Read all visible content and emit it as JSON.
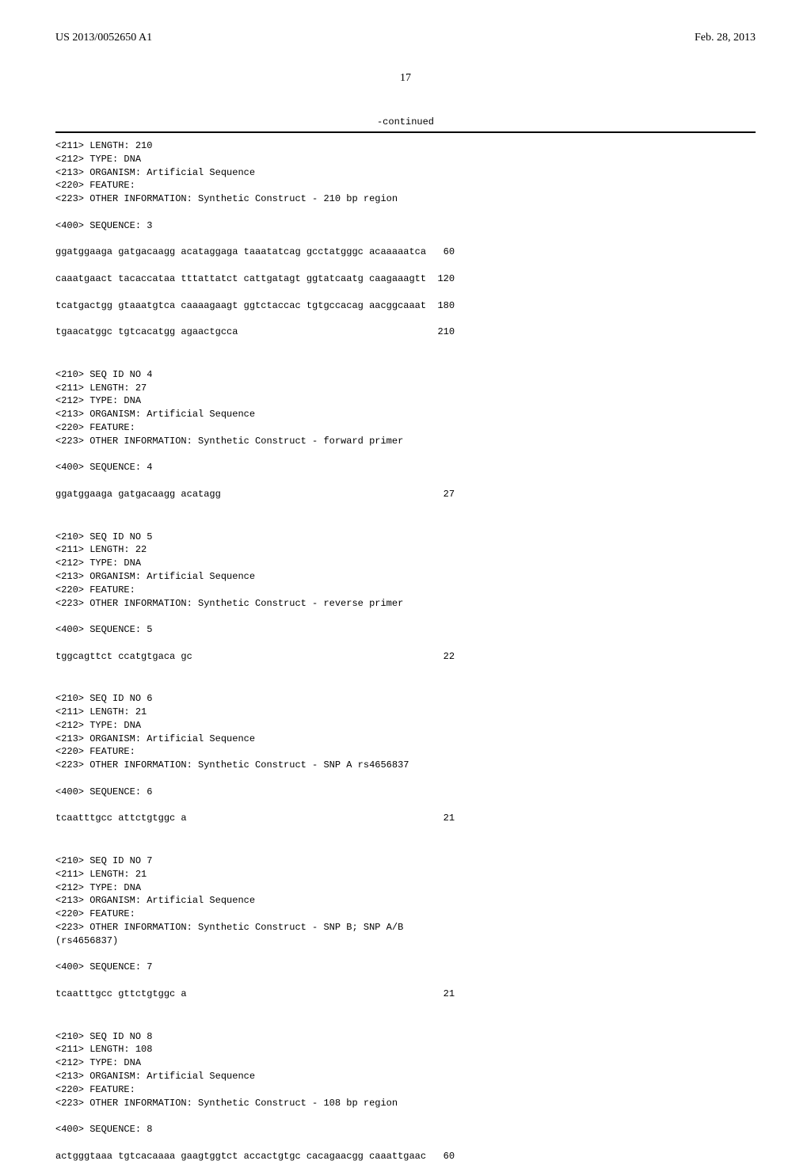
{
  "header": {
    "left": "US 2013/0052650 A1",
    "right": "Feb. 28, 2013"
  },
  "page_number": "17",
  "continued_label": "-continued",
  "sequences": [
    {
      "meta": [
        "<211> LENGTH: 210",
        "<212> TYPE: DNA",
        "<213> ORGANISM: Artificial Sequence",
        "<220> FEATURE:",
        "<223> OTHER INFORMATION: Synthetic Construct - 210 bp region"
      ],
      "seq_label": "<400> SEQUENCE: 3",
      "lines": [
        {
          "text": "ggatggaaga gatgacaagg acataggaga taaatatcag gcctatgggc acaaaaatca",
          "pos": "60"
        },
        {
          "text": "caaatgaact tacaccataa tttattatct cattgatagt ggtatcaatg caagaaagtt",
          "pos": "120"
        },
        {
          "text": "tcatgactgg gtaaatgtca caaaagaagt ggtctaccac tgtgccacag aacggcaaat",
          "pos": "180"
        },
        {
          "text": "tgaacatggc tgtcacatgg agaactgcca",
          "pos": "210"
        }
      ]
    },
    {
      "meta": [
        "<210> SEQ ID NO 4",
        "<211> LENGTH: 27",
        "<212> TYPE: DNA",
        "<213> ORGANISM: Artificial Sequence",
        "<220> FEATURE:",
        "<223> OTHER INFORMATION: Synthetic Construct - forward primer"
      ],
      "seq_label": "<400> SEQUENCE: 4",
      "lines": [
        {
          "text": "ggatggaaga gatgacaagg acatagg",
          "pos": "27"
        }
      ]
    },
    {
      "meta": [
        "<210> SEQ ID NO 5",
        "<211> LENGTH: 22",
        "<212> TYPE: DNA",
        "<213> ORGANISM: Artificial Sequence",
        "<220> FEATURE:",
        "<223> OTHER INFORMATION: Synthetic Construct - reverse primer"
      ],
      "seq_label": "<400> SEQUENCE: 5",
      "lines": [
        {
          "text": "tggcagttct ccatgtgaca gc",
          "pos": "22"
        }
      ]
    },
    {
      "meta": [
        "<210> SEQ ID NO 6",
        "<211> LENGTH: 21",
        "<212> TYPE: DNA",
        "<213> ORGANISM: Artificial Sequence",
        "<220> FEATURE:",
        "<223> OTHER INFORMATION: Synthetic Construct - SNP A rs4656837"
      ],
      "seq_label": "<400> SEQUENCE: 6",
      "lines": [
        {
          "text": "tcaatttgcc attctgtggc a",
          "pos": "21"
        }
      ]
    },
    {
      "meta": [
        "<210> SEQ ID NO 7",
        "<211> LENGTH: 21",
        "<212> TYPE: DNA",
        "<213> ORGANISM: Artificial Sequence",
        "<220> FEATURE:",
        "<223> OTHER INFORMATION: Synthetic Construct - SNP B; SNP A/B",
        "      (rs4656837)"
      ],
      "seq_label": "<400> SEQUENCE: 7",
      "lines": [
        {
          "text": "tcaatttgcc gttctgtggc a",
          "pos": "21"
        }
      ]
    },
    {
      "meta": [
        "<210> SEQ ID NO 8",
        "<211> LENGTH: 108",
        "<212> TYPE: DNA",
        "<213> ORGANISM: Artificial Sequence",
        "<220> FEATURE:",
        "<223> OTHER INFORMATION: Synthetic Construct - 108 bp region"
      ],
      "seq_label": "<400> SEQUENCE: 8",
      "lines": [
        {
          "text": "actgggtaaa tgtcacaaaa gaagtggtct accactgtgc cacagaacgg caaattgaac",
          "pos": "60"
        }
      ]
    }
  ]
}
